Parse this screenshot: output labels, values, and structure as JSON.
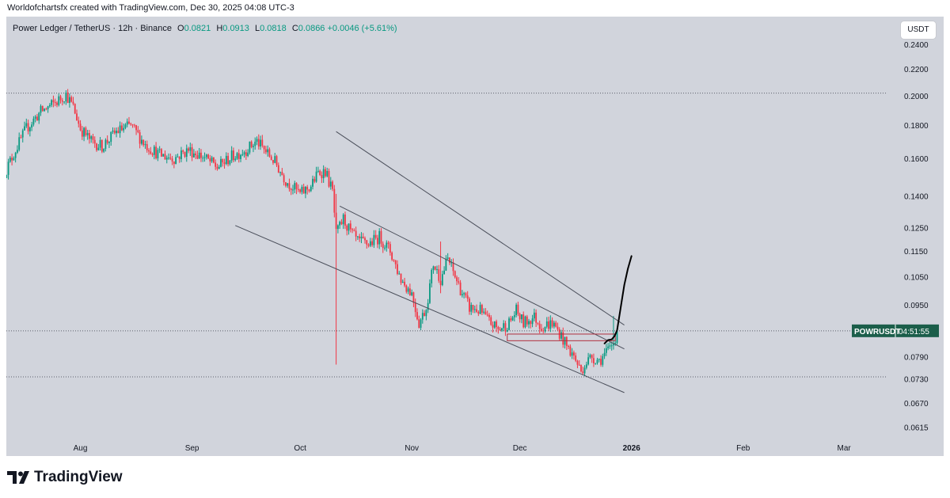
{
  "credit": "Worldofchartsfx created with TradingView.com, Dec 30, 2025 04:08 UTC-3",
  "header": {
    "symbol_desc": "Power Ledger / TetherUS · 12h · Binance",
    "open_label": "O",
    "open": "0.0821",
    "high_label": "H",
    "high": "0.0913",
    "low_label": "L",
    "low": "0.0818",
    "close_label": "C",
    "close": "0.0866",
    "change": "+0.0046 (+5.61%)"
  },
  "unit_button": "USDT",
  "logo_text": "TradingView",
  "price_tag": {
    "symbol": "POWRUSDT",
    "countdown": "04:51:55",
    "value": 0.0866
  },
  "colors": {
    "up": "#089981",
    "down": "#f23645",
    "background": "#d1d4dc",
    "tag": "#1b5e4a"
  },
  "chart_data": {
    "type": "candlestick",
    "title": "Power Ledger / TetherUS · 12h · Binance",
    "y_scale": "log",
    "ylim": [
      0.059,
      0.265
    ],
    "x_days_range": [
      0,
      250
    ],
    "x_ticks": [
      {
        "label": "Aug",
        "day": 21
      },
      {
        "label": "Sep",
        "day": 52
      },
      {
        "label": "Oct",
        "day": 82
      },
      {
        "label": "Nov",
        "day": 113
      },
      {
        "label": "Dec",
        "day": 143
      },
      {
        "label": "2026",
        "day": 174
      },
      {
        "label": "Feb",
        "day": 205
      },
      {
        "label": "Mar",
        "day": 233
      }
    ],
    "y_ticks": [
      "0.2400",
      "0.2200",
      "0.2000",
      "0.1800",
      "0.1600",
      "0.1400",
      "0.1250",
      "0.1150",
      "0.1050",
      "0.0950",
      "0.0790",
      "0.0730",
      "0.0670",
      "0.0615"
    ],
    "anchors": [
      [
        0,
        0.152
      ],
      [
        3,
        0.165
      ],
      [
        6,
        0.178
      ],
      [
        10,
        0.189
      ],
      [
        14,
        0.195
      ],
      [
        17,
        0.201
      ],
      [
        19,
        0.192
      ],
      [
        21,
        0.178
      ],
      [
        24,
        0.17
      ],
      [
        27,
        0.167
      ],
      [
        31,
        0.176
      ],
      [
        35,
        0.18
      ],
      [
        39,
        0.168
      ],
      [
        43,
        0.162
      ],
      [
        47,
        0.16
      ],
      [
        51,
        0.165
      ],
      [
        55,
        0.161
      ],
      [
        59,
        0.155
      ],
      [
        63,
        0.161
      ],
      [
        67,
        0.165
      ],
      [
        70,
        0.17
      ],
      [
        72,
        0.165
      ],
      [
        75,
        0.158
      ],
      [
        78,
        0.148
      ],
      [
        82,
        0.141
      ],
      [
        85,
        0.145
      ],
      [
        87,
        0.152
      ],
      [
        89,
        0.153
      ],
      [
        91,
        0.142
      ],
      [
        92,
        0.122
      ],
      [
        94,
        0.129
      ],
      [
        96,
        0.123
      ],
      [
        98,
        0.119
      ],
      [
        101,
        0.118
      ],
      [
        104,
        0.121
      ],
      [
        107,
        0.115
      ],
      [
        110,
        0.104
      ],
      [
        113,
        0.099
      ],
      [
        115,
        0.089
      ],
      [
        117,
        0.094
      ],
      [
        119,
        0.11
      ],
      [
        121,
        0.104
      ],
      [
        123,
        0.112
      ],
      [
        125,
        0.105
      ],
      [
        127,
        0.099
      ],
      [
        129,
        0.094
      ],
      [
        132,
        0.093
      ],
      [
        134,
        0.09
      ],
      [
        137,
        0.087
      ],
      [
        140,
        0.089
      ],
      [
        142,
        0.093
      ],
      [
        144,
        0.089
      ],
      [
        147,
        0.091
      ],
      [
        149,
        0.088
      ],
      [
        152,
        0.089
      ],
      [
        154,
        0.086
      ],
      [
        156,
        0.082
      ],
      [
        158,
        0.079
      ],
      [
        160,
        0.075
      ],
      [
        161,
        0.077
      ],
      [
        163,
        0.079
      ],
      [
        165,
        0.078
      ],
      [
        167,
        0.08
      ],
      [
        169,
        0.083
      ],
      [
        170,
        0.0866
      ]
    ],
    "wicks": [
      {
        "day": 92,
        "high": 0.141,
        "low": 0.0768
      },
      {
        "day": 121,
        "high": 0.119,
        "low": 0.099
      },
      {
        "day": 169,
        "high": 0.0913,
        "low": 0.081
      }
    ],
    "hlines": [
      0.2018,
      0.0866,
      0.0735
    ],
    "projection": [
      [
        166.5,
        0.0828
      ],
      [
        167.5,
        0.0838
      ],
      [
        168.5,
        0.084
      ],
      [
        169.3,
        0.085
      ],
      [
        170,
        0.0868
      ],
      [
        171,
        0.094
      ],
      [
        172,
        0.102
      ],
      [
        173,
        0.108
      ],
      [
        174,
        0.113
      ]
    ],
    "lines": [
      {
        "from": [
          92,
          0.176
        ],
        "to": [
          172,
          0.0884
        ]
      },
      {
        "from": [
          93,
          0.135
        ],
        "to": [
          172,
          0.0812
        ]
      },
      {
        "from": [
          64,
          0.126
        ],
        "to": [
          172,
          0.0695
        ]
      }
    ],
    "rect": {
      "from": [
        139.5,
        0.0856
      ],
      "to": [
        169.5,
        0.0836
      ]
    }
  }
}
